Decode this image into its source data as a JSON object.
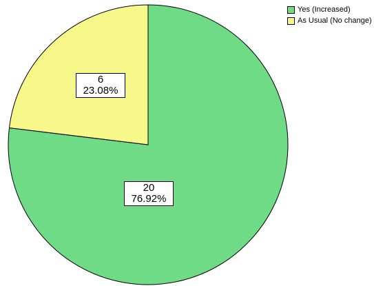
{
  "chart_data": {
    "type": "pie",
    "title": "",
    "legend_position": "top-right",
    "slices": [
      {
        "name": "Yes (Increased)",
        "value": 20,
        "percent": "76.92%",
        "color": "#70db87"
      },
      {
        "name": "As Usual (No change)",
        "value": 6,
        "percent": "23.08%",
        "color": "#f8f78a"
      }
    ]
  }
}
